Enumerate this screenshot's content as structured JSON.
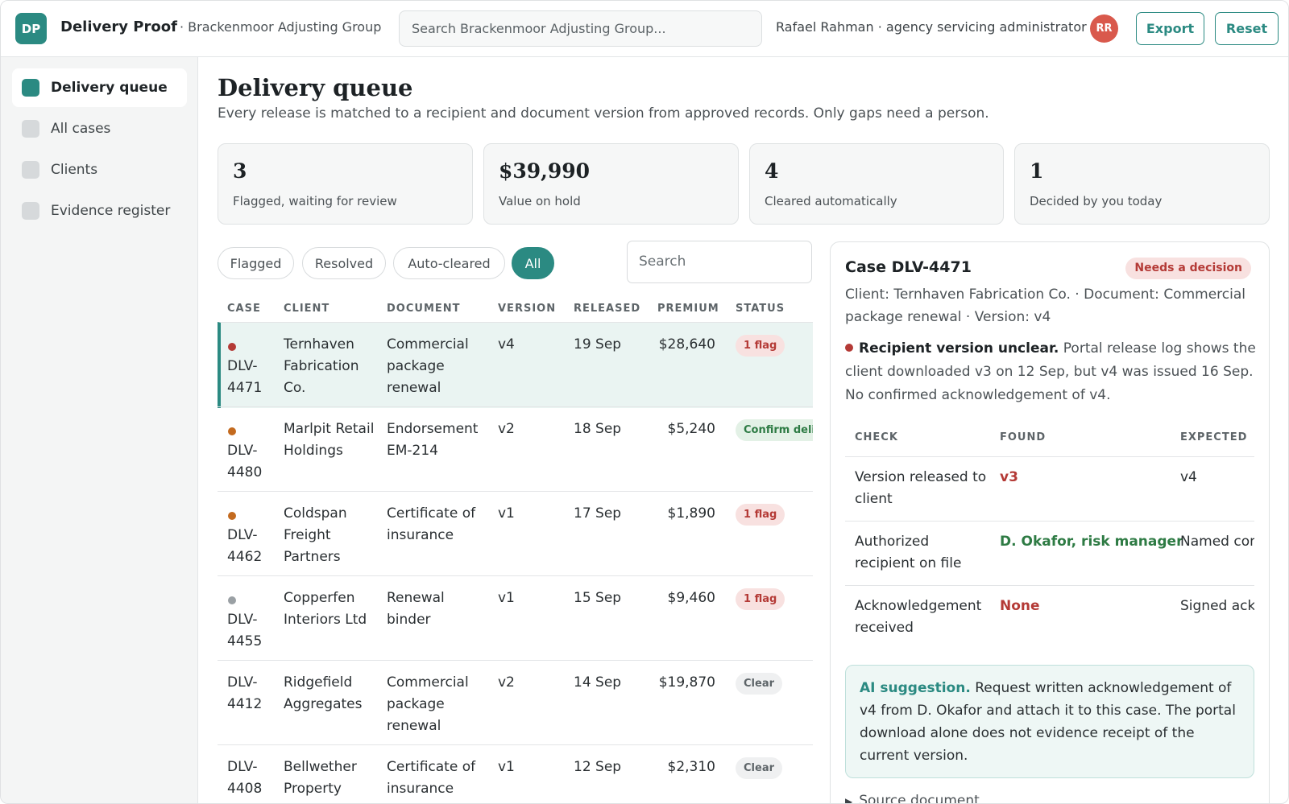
{
  "app": {
    "logo_initials": "DP",
    "name": "Delivery Proof",
    "org": "· Brackenmoor Adjusting Group",
    "search_placeholder": "Search Brackenmoor Adjusting Group...",
    "user": "Rafael Rahman · agency servicing administrator",
    "avatar_initials": "RR",
    "export_label": "Export",
    "reset_label": "Reset"
  },
  "sidebar": {
    "items": [
      {
        "label": "Delivery queue",
        "active": true
      },
      {
        "label": "All cases",
        "active": false
      },
      {
        "label": "Clients",
        "active": false
      },
      {
        "label": "Evidence register",
        "active": false
      }
    ]
  },
  "page": {
    "title": "Delivery queue",
    "subtitle": "Every release is matched to a recipient and document version from approved records. Only gaps need a person."
  },
  "stats": [
    {
      "value": "3",
      "label": "Flagged, waiting for review"
    },
    {
      "value": "$39,990",
      "label": "Value on hold"
    },
    {
      "value": "4",
      "label": "Cleared automatically"
    },
    {
      "value": "1",
      "label": "Decided by you today"
    }
  ],
  "filters": {
    "pills": [
      "Flagged",
      "Resolved",
      "Auto-cleared",
      "All"
    ],
    "active": "All",
    "search_placeholder": "Search"
  },
  "table": {
    "headers": [
      "Case",
      "Client",
      "Document",
      "Version",
      "Released",
      "Premium",
      "Status"
    ],
    "rows": [
      {
        "case": "DLV-4471",
        "client": "Ternhaven Fabrication Co.",
        "document": "Commercial package renewal",
        "version": "v4",
        "released": "19 Sep",
        "premium": "$28,640",
        "status": "1 flag",
        "status_type": "flag",
        "dot": "#b43a36",
        "selected": true
      },
      {
        "case": "DLV-4480",
        "client": "Marlpit Retail Holdings",
        "document": "Endorsement EM-214",
        "version": "v2",
        "released": "18 Sep",
        "premium": "$5,240",
        "status": "Confirm delivery",
        "status_type": "confirm",
        "dot": "#c36a1f",
        "selected": false
      },
      {
        "case": "DLV-4462",
        "client": "Coldspan Freight Partners",
        "document": "Certificate of insurance",
        "version": "v1",
        "released": "17 Sep",
        "premium": "$1,890",
        "status": "1 flag",
        "status_type": "flag",
        "dot": "#c36a1f",
        "selected": false
      },
      {
        "case": "DLV-4455",
        "client": "Copperfen Interiors Ltd",
        "document": "Renewal binder",
        "version": "v1",
        "released": "15 Sep",
        "premium": "$9,460",
        "status": "1 flag",
        "status_type": "flag",
        "dot": "#9aa0a4",
        "selected": false
      },
      {
        "case": "DLV-4412",
        "client": "Ridgefield Aggregates",
        "document": "Commercial package renewal",
        "version": "v2",
        "released": "14 Sep",
        "premium": "$19,870",
        "status": "Clear",
        "status_type": "clear",
        "dot": "",
        "selected": false
      },
      {
        "case": "DLV-4408",
        "client": "Bellwether Property",
        "document": "Certificate of insurance",
        "version": "v1",
        "released": "12 Sep",
        "premium": "$2,310",
        "status": "Clear",
        "status_type": "clear",
        "dot": "",
        "selected": false
      }
    ]
  },
  "detail": {
    "title": "Case DLV-4471",
    "badge": "Needs a decision",
    "meta": "Client: Ternhaven Fabrication Co. · Document: Commercial package renewal · Version: v4",
    "issue_title": "Recipient version unclear.",
    "issue_text": " Portal release log shows the client downloaded v3 on 12 Sep, but v4 was issued 16 Sep. No confirmed acknowledgement of v4.",
    "check_headers": [
      "Check",
      "Found",
      "Expected"
    ],
    "checks": [
      {
        "check": "Version released to client",
        "found": "v3",
        "found_style": "red",
        "expected": "v4"
      },
      {
        "check": "Authorized recipient on file",
        "found": "D. Okafor, risk manager",
        "found_style": "green",
        "expected": "Named contact"
      },
      {
        "check": "Acknowledgement received",
        "found": "None",
        "found_style": "red",
        "expected": "Signed acknowledgement"
      }
    ],
    "ai_label": "AI suggestion.",
    "ai_text": " Request written acknowledgement of v4 from D. Okafor and attach it to this case. The portal download alone does not evidence receipt of the current version.",
    "source_label": "Source document"
  }
}
